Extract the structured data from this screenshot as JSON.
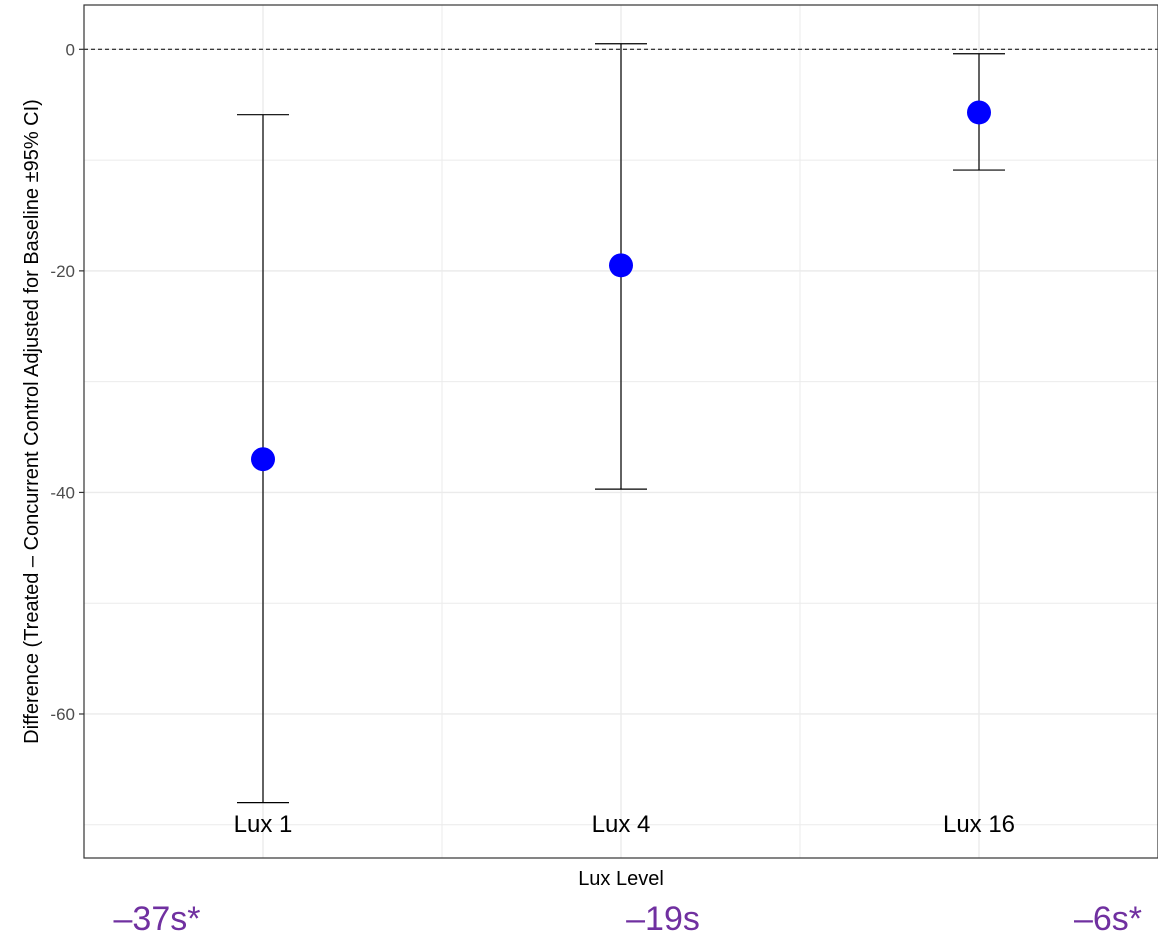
{
  "chart_data": {
    "type": "scatter",
    "title": "",
    "xlabel": "Lux Level",
    "ylabel": "Difference (Treated – Concurrent Control Adjusted for Baseline ±95% CI)",
    "categories": [
      "Lux 1",
      "Lux 4",
      "Lux 16"
    ],
    "values": [
      -37,
      -19.5,
      -5.7
    ],
    "ci_low": [
      -68,
      -39.7,
      -10.9
    ],
    "ci_high": [
      -5.9,
      0.5,
      -0.4
    ],
    "ylim": [
      -73,
      4
    ],
    "yticks": [
      0,
      -20,
      -40,
      -60
    ],
    "reference_line": 0,
    "grid": true,
    "legend": "none",
    "annotations": [
      "–37s*",
      "–19s",
      "–6s*"
    ],
    "colors": {
      "point": "#0000ff",
      "errorbar": "#000000",
      "annotation": "#7030a0",
      "grid": "#ebebeb",
      "panel_border": "#333333"
    }
  }
}
